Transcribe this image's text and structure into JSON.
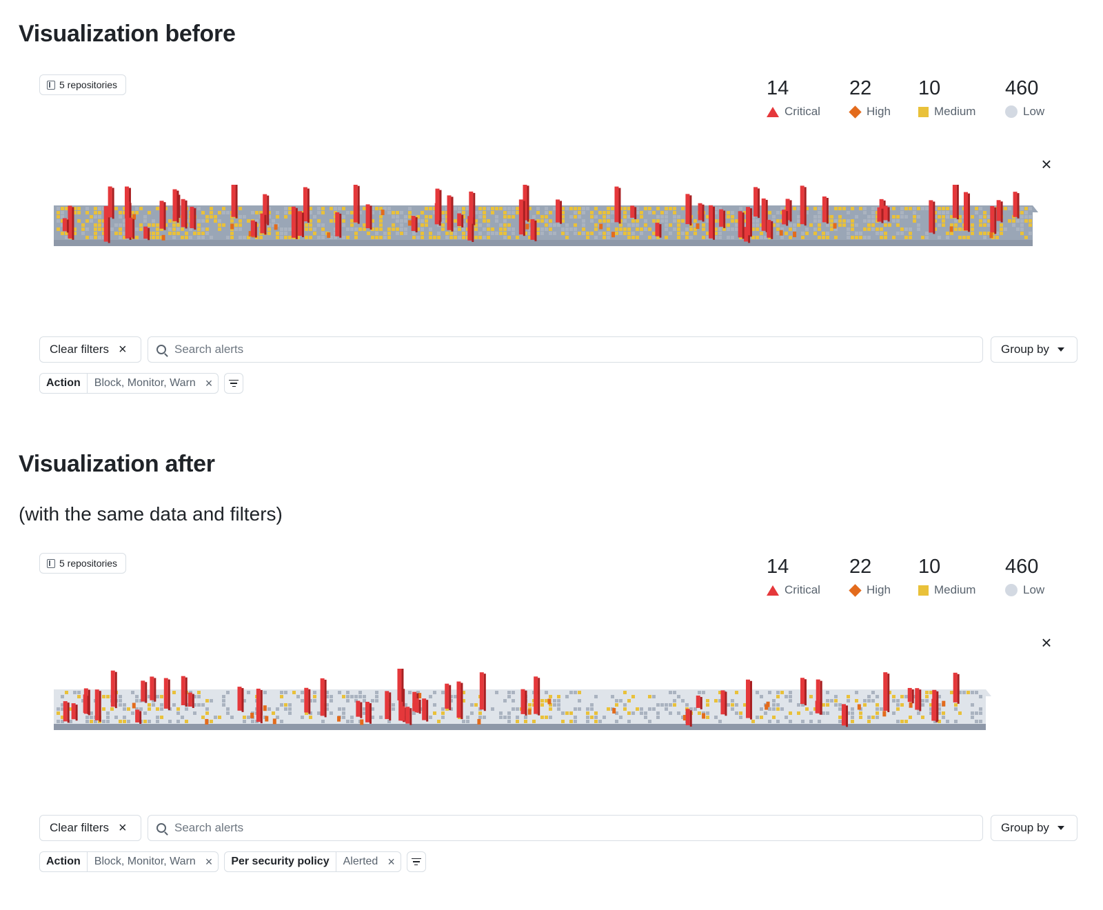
{
  "sections": [
    {
      "title": "Visualization before",
      "subtitle": "",
      "repositories_label": "5 repositories",
      "stats": [
        {
          "count": "14",
          "label": "Critical",
          "icon": "critical-triangle-icon",
          "color": "#e5383b"
        },
        {
          "count": "22",
          "label": "High",
          "icon": "high-diamond-icon",
          "color": "#e36b1c"
        },
        {
          "count": "10",
          "label": "Medium",
          "icon": "medium-square-icon",
          "color": "#e9c13a"
        },
        {
          "count": "460",
          "label": "Low",
          "icon": "low-circle-icon",
          "color": "#d3d9e2"
        }
      ],
      "clear_filters_label": "Clear filters",
      "search_placeholder": "Search alerts",
      "group_by_label": "Group by",
      "filters": [
        {
          "key": "Action",
          "value": "Block, Monitor, Warn"
        }
      ]
    },
    {
      "title": "Visualization after",
      "subtitle": "(with the same data and filters)",
      "repositories_label": "5 repositories",
      "stats": [
        {
          "count": "14",
          "label": "Critical",
          "icon": "critical-triangle-icon",
          "color": "#e5383b"
        },
        {
          "count": "22",
          "label": "High",
          "icon": "high-diamond-icon",
          "color": "#e36b1c"
        },
        {
          "count": "10",
          "label": "Medium",
          "icon": "medium-square-icon",
          "color": "#e9c13a"
        },
        {
          "count": "460",
          "label": "Low",
          "icon": "low-circle-icon",
          "color": "#d3d9e2"
        }
      ],
      "clear_filters_label": "Clear filters",
      "search_placeholder": "Search alerts",
      "group_by_label": "Group by",
      "filters": [
        {
          "key": "Action",
          "value": "Block, Monitor, Warn"
        },
        {
          "key": "Per security policy",
          "value": "Alerted"
        }
      ]
    }
  ]
}
